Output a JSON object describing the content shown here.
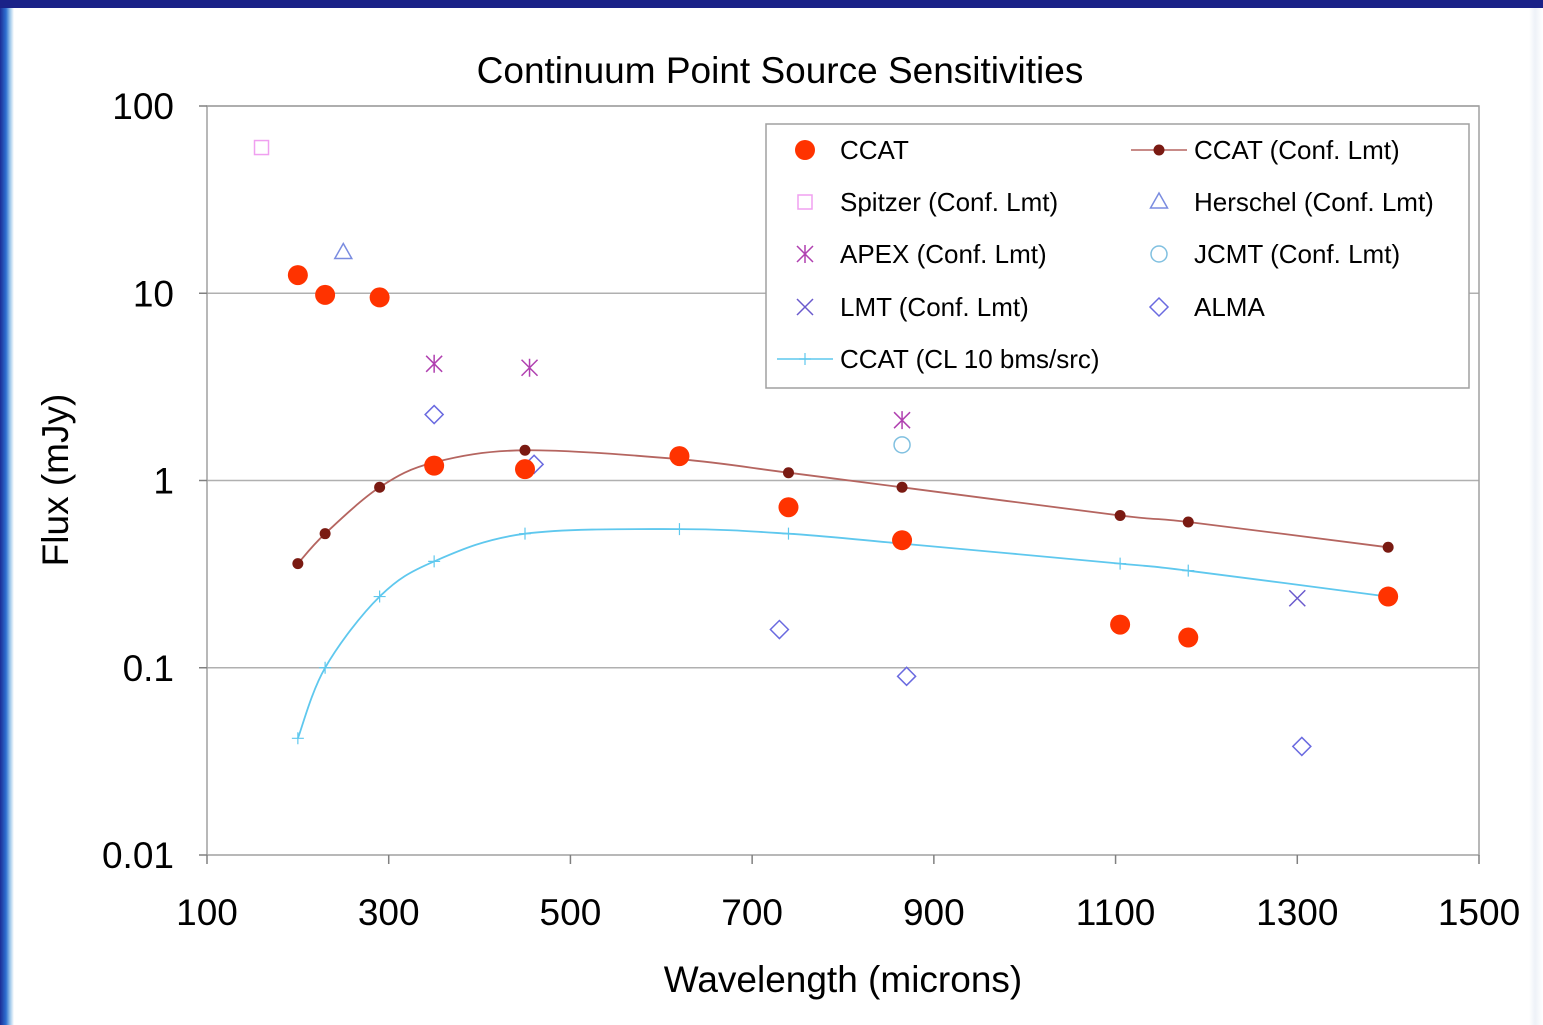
{
  "chart_data": {
    "type": "scatter",
    "title": "Continuum Point Source Sensitivities",
    "xlabel": "Wavelength (microns)",
    "ylabel": "Flux (mJy)",
    "xlim": [
      100,
      1500
    ],
    "ylim": [
      0.01,
      100
    ],
    "yscale": "log",
    "grid": "horizontal major lines",
    "legend_position": "top-right",
    "x_ticks": [
      "100",
      "300",
      "500",
      "700",
      "900",
      "1100",
      "1300",
      "1500"
    ],
    "y_ticks": [
      "0.01",
      "0.1",
      "1",
      "10",
      "100"
    ],
    "series": [
      {
        "name": "CCAT",
        "marker": "filled-circle-large",
        "color": "#ff3300",
        "x": [
          200,
          230,
          290,
          350,
          450,
          620,
          740,
          865,
          1105,
          1180,
          1400
        ],
        "y": [
          12.5,
          9.8,
          9.5,
          1.2,
          1.15,
          1.35,
          0.72,
          0.48,
          0.17,
          0.145,
          0.24
        ]
      },
      {
        "name": "CCAT (Conf. Lmt)",
        "marker": "filled-circle-small",
        "color": "#7a1a12",
        "line_color": "#b56560",
        "line": "smooth",
        "x": [
          200,
          230,
          290,
          350,
          450,
          620,
          740,
          865,
          1105,
          1180,
          1400
        ],
        "y": [
          0.36,
          0.52,
          0.92,
          1.25,
          1.45,
          1.3,
          1.1,
          0.92,
          0.65,
          0.6,
          0.44
        ]
      },
      {
        "name": "Spitzer (Conf. Lmt)",
        "marker": "open-square",
        "color": "#f0a0f0",
        "x": [
          160
        ],
        "y": [
          60
        ]
      },
      {
        "name": "Herschel (Conf. Lmt)",
        "marker": "open-triangle",
        "color": "#7a8ce0",
        "x": [
          250
        ],
        "y": [
          16.5
        ]
      },
      {
        "name": "APEX (Conf. Lmt)",
        "marker": "asterisk",
        "color": "#b040b0",
        "x": [
          350,
          455,
          865
        ],
        "y": [
          4.2,
          4.0,
          2.1
        ]
      },
      {
        "name": "JCMT (Conf. Lmt)",
        "marker": "open-circle",
        "color": "#80c0e0",
        "x": [
          865
        ],
        "y": [
          1.55
        ]
      },
      {
        "name": "LMT (Conf. Lmt)",
        "marker": "x",
        "color": "#6a5acd",
        "x": [
          1300
        ],
        "y": [
          0.235
        ]
      },
      {
        "name": "ALMA",
        "marker": "open-diamond",
        "color": "#6a6ae0",
        "x": [
          350,
          460,
          730,
          870,
          1305
        ],
        "y": [
          2.25,
          1.22,
          0.16,
          0.09,
          0.038
        ]
      },
      {
        "name": "CCAT (CL 10 bms/src)",
        "marker": "plus",
        "color": "#5fc8ee",
        "line": "smooth",
        "x": [
          200,
          230,
          290,
          350,
          450,
          620,
          740,
          865,
          1105,
          1180,
          1400
        ],
        "y": [
          0.042,
          0.1,
          0.24,
          0.37,
          0.52,
          0.55,
          0.52,
          0.46,
          0.36,
          0.33,
          0.24
        ]
      }
    ],
    "legend": {
      "left_column": [
        "CCAT",
        "Spitzer (Conf. Lmt)",
        "APEX (Conf. Lmt)",
        "LMT (Conf. Lmt)",
        "CCAT (CL 10 bms/src)"
      ],
      "right_column": [
        "CCAT (Conf. Lmt)",
        "Herschel (Conf. Lmt)",
        "JCMT (Conf. Lmt)",
        "ALMA"
      ]
    }
  }
}
